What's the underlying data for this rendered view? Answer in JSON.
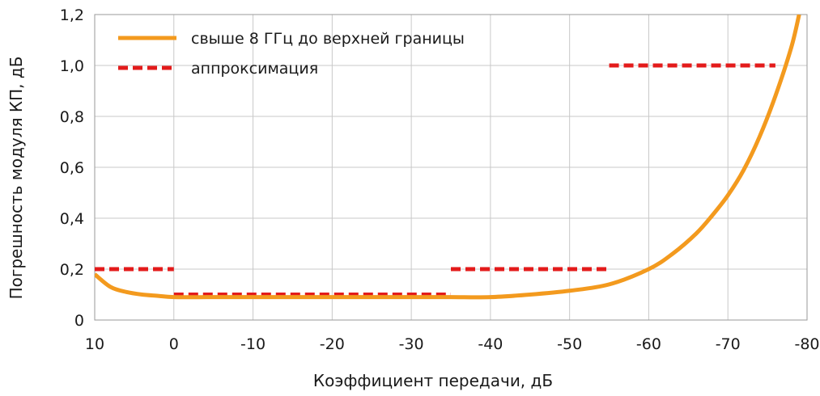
{
  "chart_data": {
    "type": "line",
    "title": "",
    "xlabel": "Коэффициент передачи, дБ",
    "ylabel": "Погрешность модуля КП, дБ",
    "xlim": [
      10,
      -80
    ],
    "ylim": [
      0,
      1.2
    ],
    "x_reversed": true,
    "x_ticks": [
      10,
      0,
      -10,
      -20,
      -30,
      -40,
      -50,
      -60,
      -70,
      -80
    ],
    "x_tick_labels": [
      "10",
      "0",
      "-10",
      "-20",
      "-30",
      "-40",
      "-50",
      "-60",
      "-70",
      "-80"
    ],
    "y_ticks": [
      0,
      0.2,
      0.4,
      0.6,
      0.8,
      1.0,
      1.2
    ],
    "y_tick_labels": [
      "0",
      "0,2",
      "0,4",
      "0,6",
      "0,8",
      "1,0",
      "1,2"
    ],
    "grid": true,
    "legend_position": "top-left",
    "series": [
      {
        "name": "свыше 8 ГГц до верхней границы",
        "style": "solid",
        "color": "#f39a1e",
        "x": [
          10,
          8,
          6,
          4,
          2,
          0,
          -5,
          -10,
          -20,
          -30,
          -35,
          -40,
          -45,
          -50,
          -55,
          -60,
          -63,
          -66,
          -68,
          -70,
          -72,
          -74,
          -76,
          -78,
          -79
        ],
        "y": [
          0.18,
          0.13,
          0.11,
          0.1,
          0.095,
          0.09,
          0.09,
          0.09,
          0.09,
          0.09,
          0.09,
          0.09,
          0.1,
          0.115,
          0.14,
          0.2,
          0.26,
          0.34,
          0.41,
          0.49,
          0.59,
          0.72,
          0.88,
          1.07,
          1.2
        ]
      },
      {
        "name": "аппроксимация",
        "style": "dashed",
        "color": "#e31b1b",
        "segments": [
          {
            "x": [
              10,
              0
            ],
            "y": [
              0.2,
              0.2
            ]
          },
          {
            "x": [
              0,
              -35
            ],
            "y": [
              0.1,
              0.1
            ]
          },
          {
            "x": [
              -35,
              -55
            ],
            "y": [
              0.2,
              0.2
            ]
          },
          {
            "x": [
              -55,
              -76
            ],
            "y": [
              1.0,
              1.0
            ]
          }
        ]
      }
    ]
  }
}
